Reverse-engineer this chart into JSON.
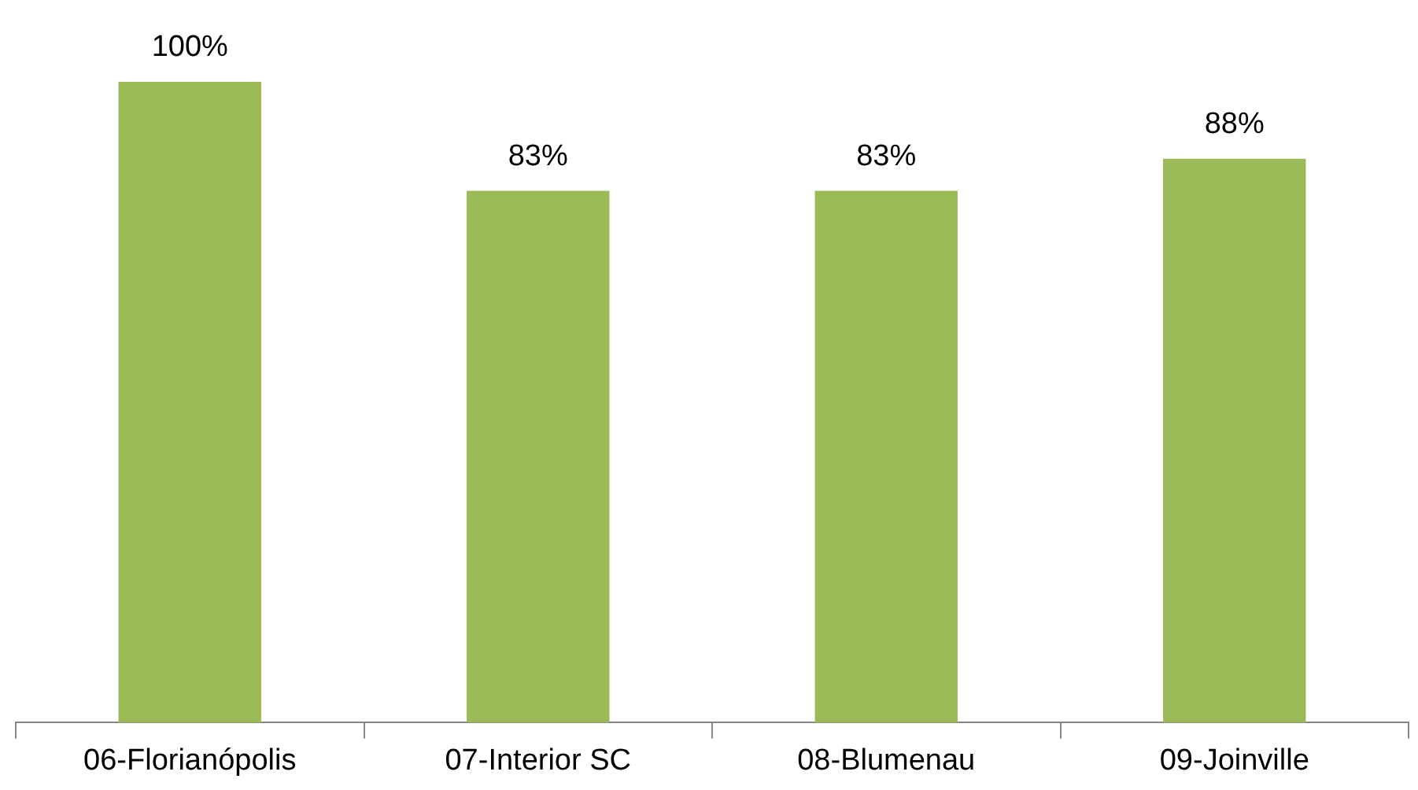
{
  "chart_data": {
    "type": "bar",
    "categories": [
      "06-Florianópolis",
      "07-Interior SC",
      "08-Blumenau",
      "09-Joinville"
    ],
    "values": [
      100,
      83,
      83,
      88
    ],
    "value_labels": [
      "100%",
      "83%",
      "83%",
      "88%"
    ],
    "color": "#9bbb59",
    "grid": false,
    "legend": false
  }
}
